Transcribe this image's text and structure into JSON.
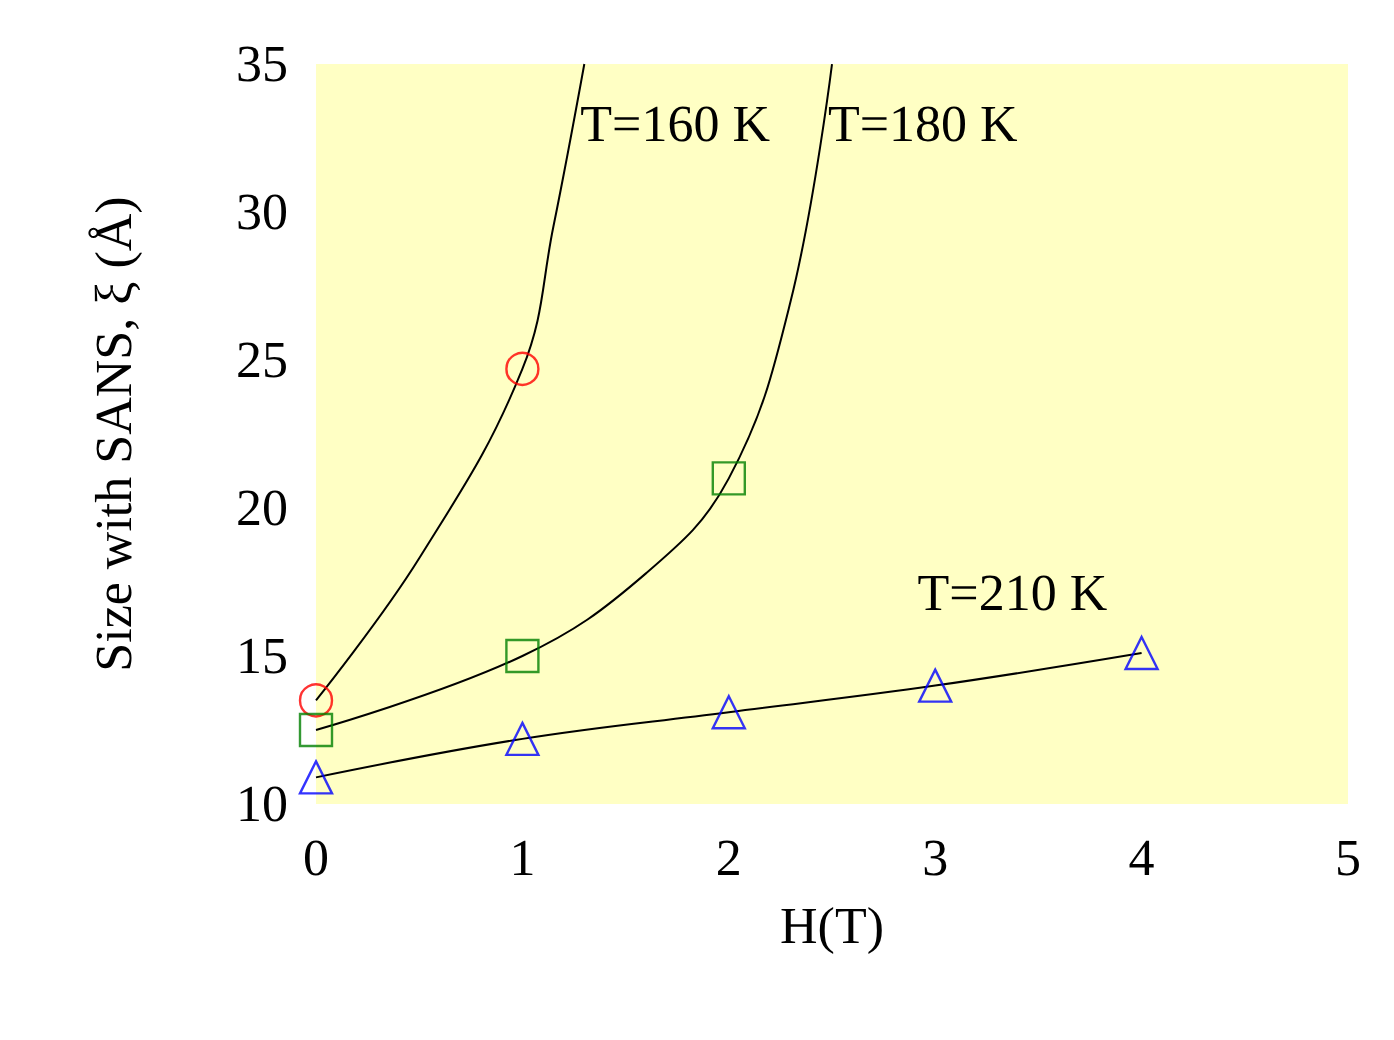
{
  "chart_data": {
    "type": "line",
    "xlabel": "H(T)",
    "ylabel": "Size with SANS, ξ (Å)",
    "xlim": [
      0,
      5
    ],
    "xticks": [
      0,
      1,
      2,
      3,
      4,
      5
    ],
    "ylim": [
      10,
      35
    ],
    "yticks": [
      10,
      15,
      20,
      25,
      30,
      35
    ],
    "grid": false,
    "legend": false,
    "series": [
      {
        "name": "T=160 K",
        "marker": "none",
        "color": "#000000",
        "x": [
          0,
          0.5,
          1,
          1.15,
          1.3
        ],
        "values": [
          13.5,
          18.3,
          24.7,
          29.5,
          35
        ]
      },
      {
        "name": "T=180 K",
        "marker": "none",
        "color": "#000000",
        "x": [
          0,
          1,
          1.6,
          2,
          2.3,
          2.5
        ],
        "values": [
          12.5,
          15,
          17.8,
          21,
          27,
          35
        ]
      },
      {
        "name": "T=210 K",
        "marker": "none",
        "color": "#000000",
        "x": [
          0,
          1,
          2,
          3,
          4
        ],
        "values": [
          10.9,
          12.2,
          13.1,
          14,
          15.1
        ]
      },
      {
        "type": "scatter",
        "marker": "circle",
        "color": "#ff0000",
        "x": [
          0,
          1
        ],
        "values": [
          13.5,
          24.7
        ]
      },
      {
        "type": "scatter",
        "marker": "square",
        "color": "#008000",
        "x": [
          0,
          1,
          2
        ],
        "values": [
          12.5,
          15,
          21
        ]
      },
      {
        "type": "scatter",
        "marker": "triangle",
        "color": "#0000ff",
        "x": [
          0,
          1,
          2,
          3,
          4
        ],
        "values": [
          10.9,
          12.2,
          13.1,
          14,
          15.1
        ]
      }
    ]
  }
}
